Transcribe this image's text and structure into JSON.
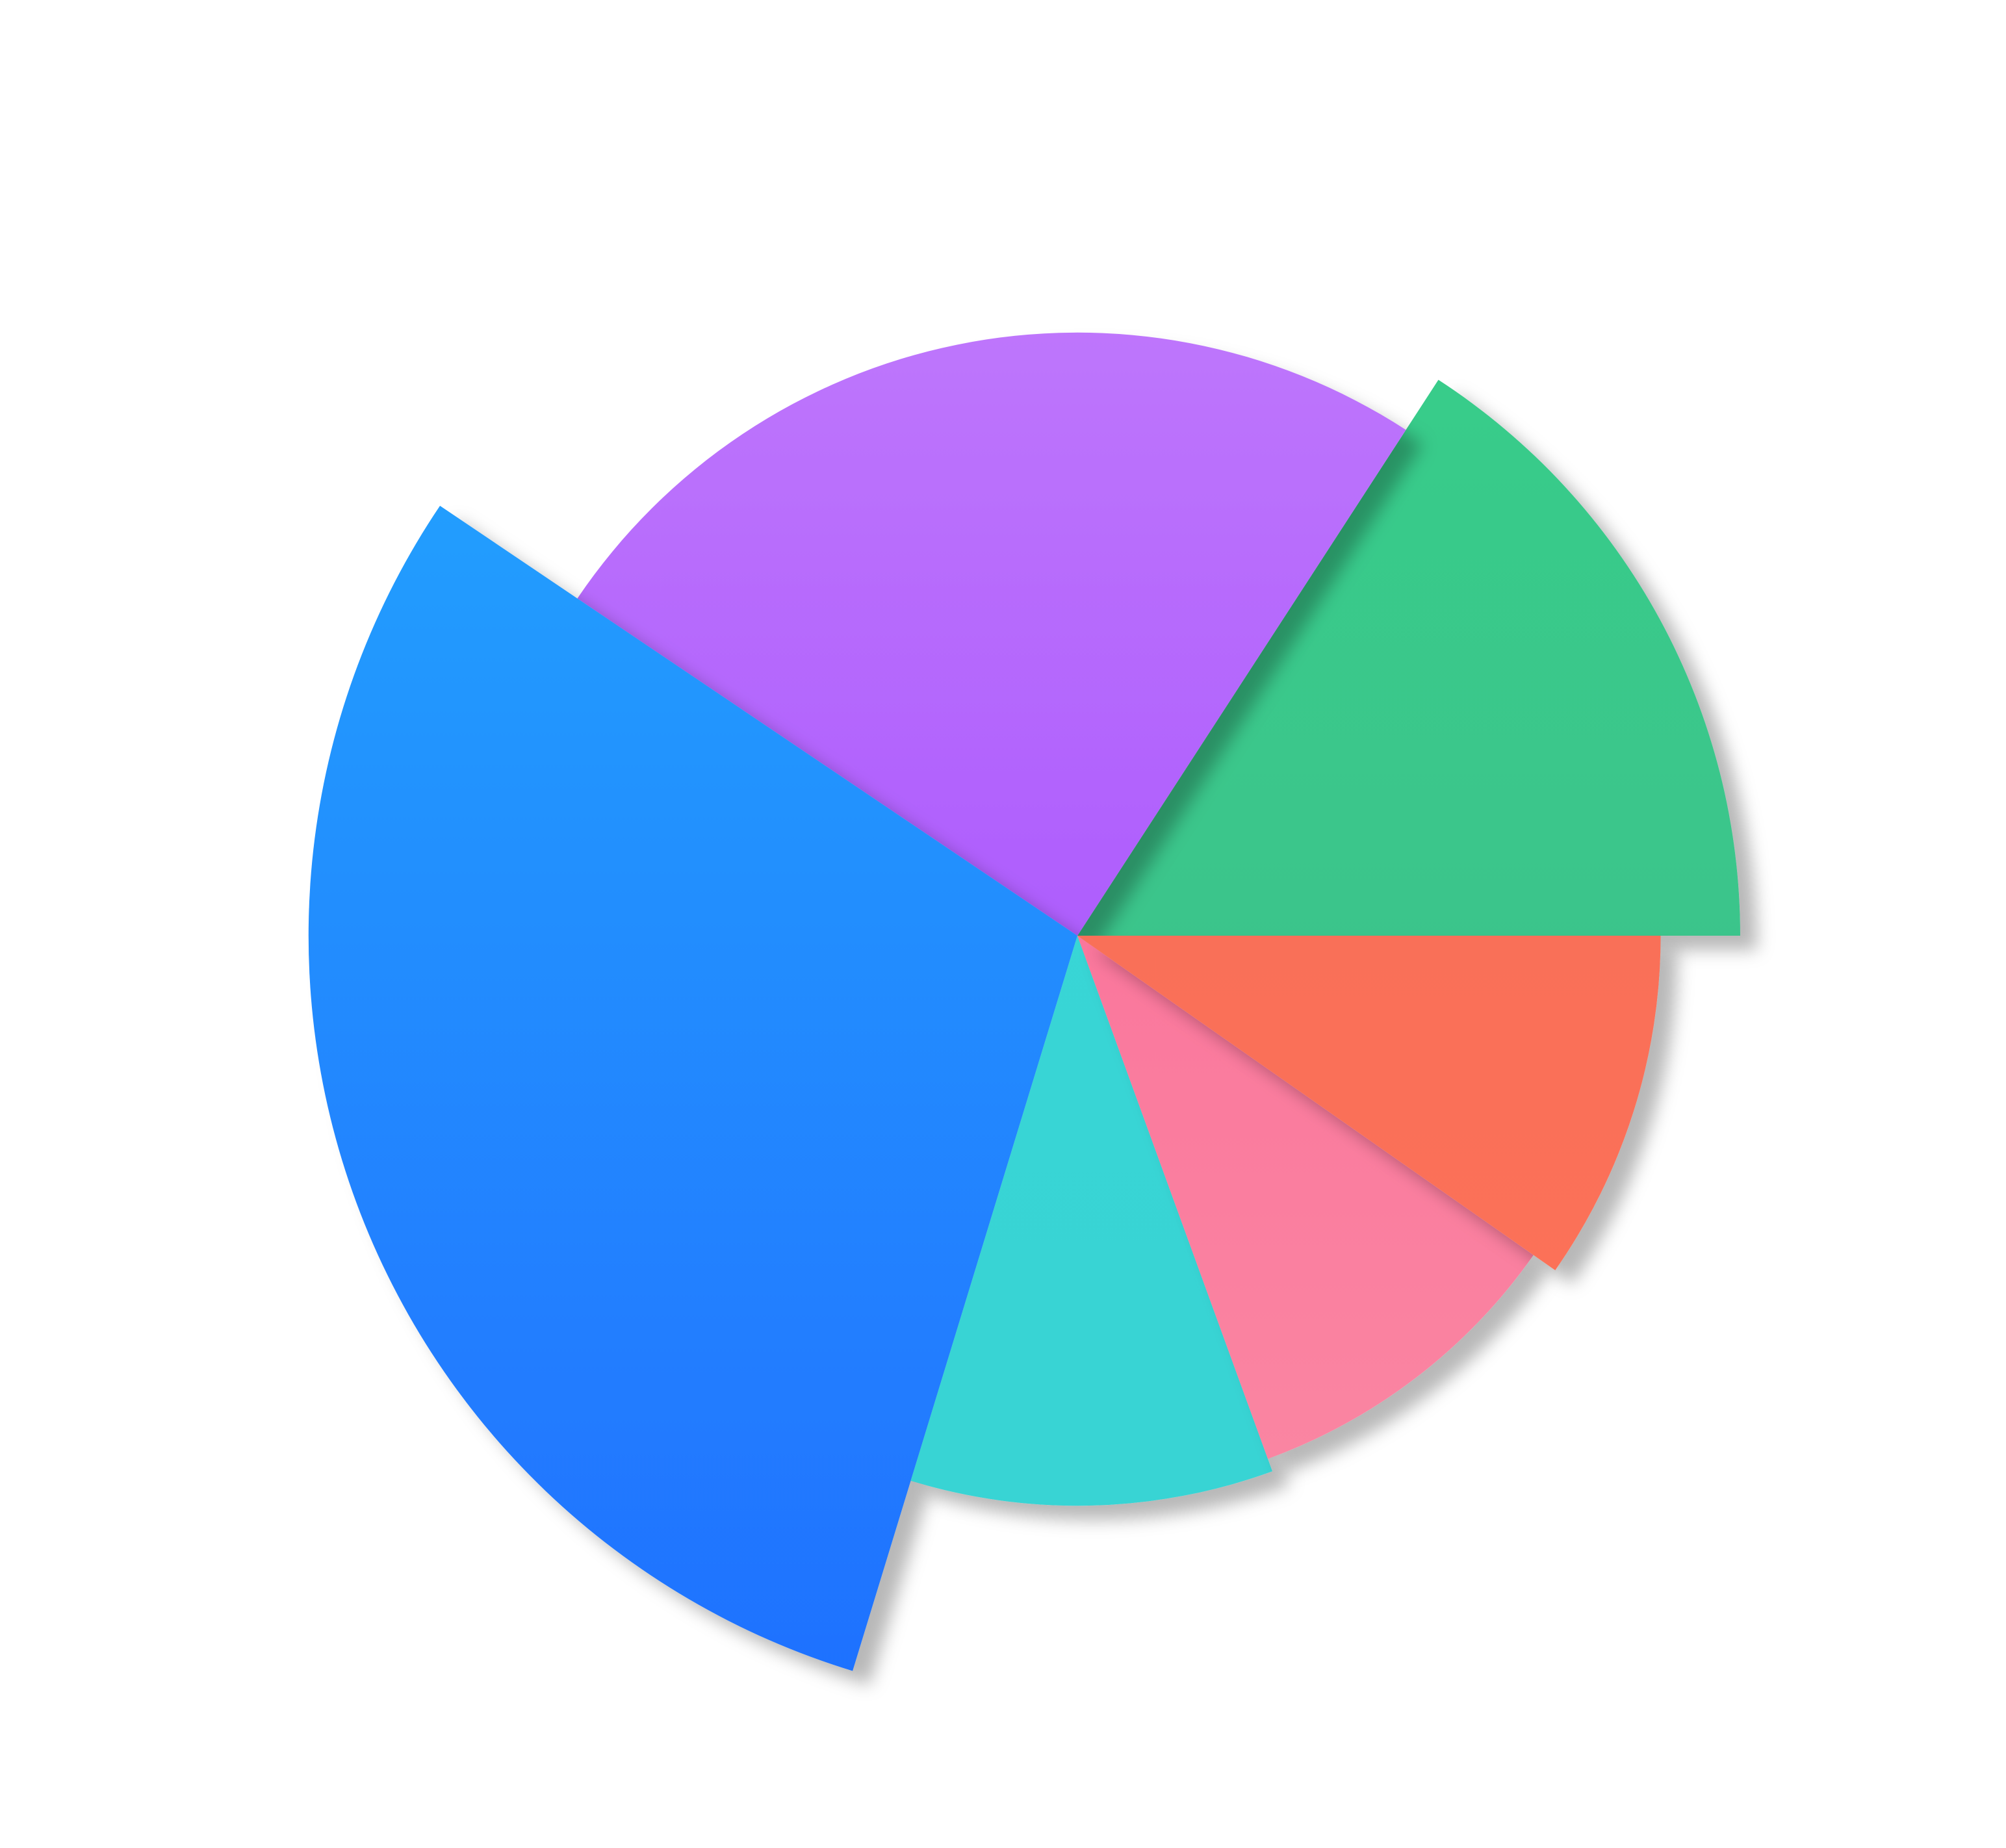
{
  "chart_data": {
    "type": "pie",
    "variant": "nightingale-rose",
    "title": "",
    "legend": "none",
    "slices": [
      {
        "value": 100,
        "angle_deg": 57,
        "color_top": "#37cf8a",
        "color_bottom": "#3fba8c"
      },
      {
        "value": 91,
        "angle_deg": 89,
        "color_top": "#c27cfc",
        "color_bottom": "#9a3ffe"
      },
      {
        "value": 116,
        "angle_deg": 107,
        "color_top": "#25aafe",
        "color_bottom": "#1f70ff"
      },
      {
        "value": 86,
        "angle_deg": 37,
        "color_top": "#3ad8d8",
        "color_bottom": "#37d3d3"
      },
      {
        "value": 84,
        "angle_deg": 35,
        "color_top": "#fb6295",
        "color_bottom": "#fa8ca4"
      },
      {
        "value": 88,
        "angle_deg": 35,
        "color_top": "#f36a58",
        "color_bottom": "#ff7459"
      }
    ]
  }
}
